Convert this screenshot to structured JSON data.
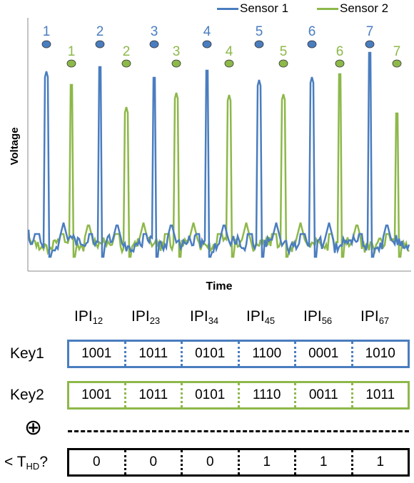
{
  "chart": {
    "xlabel": "Time",
    "ylabel": "Voltage",
    "legend": [
      {
        "name": "Sensor 1",
        "color": "#4a7dbf"
      },
      {
        "name": "Sensor 2",
        "color": "#8db84a"
      }
    ],
    "sensor1_markers": [
      "1",
      "2",
      "3",
      "4",
      "5",
      "6",
      "7"
    ],
    "sensor2_markers": [
      "1",
      "2",
      "3",
      "4",
      "5",
      "6",
      "7"
    ]
  },
  "ipi_labels": [
    {
      "base": "IPI",
      "sub": "12"
    },
    {
      "base": "IPI",
      "sub": "23"
    },
    {
      "base": "IPI",
      "sub": "34"
    },
    {
      "base": "IPI",
      "sub": "45"
    },
    {
      "base": "IPI",
      "sub": "56"
    },
    {
      "base": "IPI",
      "sub": "67"
    }
  ],
  "key1": {
    "label": "Key1",
    "color": "#4a7dbf",
    "values": [
      "1001",
      "1011",
      "0101",
      "1100",
      "0001",
      "1010"
    ]
  },
  "key2": {
    "label": "Key2",
    "color": "#8db84a",
    "values": [
      "1001",
      "1011",
      "0101",
      "1110",
      "0011",
      "1011"
    ]
  },
  "xor_symbol": "⊕",
  "threshold": {
    "prefix": "< T",
    "sub": "HD",
    "suffix": "?",
    "values": [
      "0",
      "0",
      "0",
      "1",
      "1",
      "1"
    ]
  }
}
